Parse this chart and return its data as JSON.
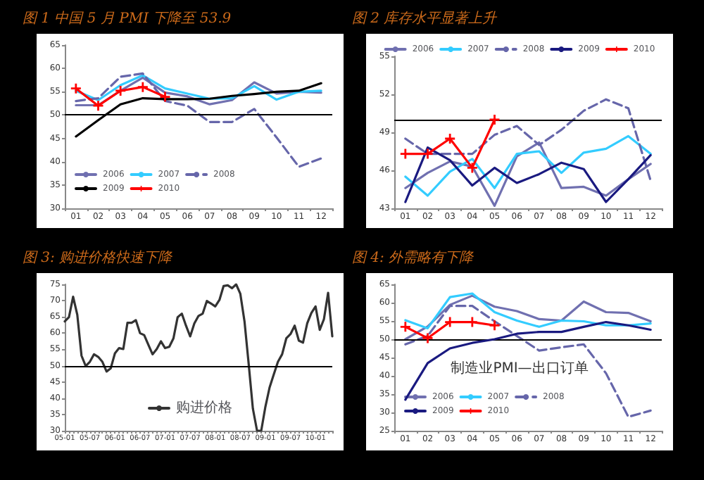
{
  "chart_data": [
    {
      "type": "line",
      "title": "图 1 中国 5 月 PMI 下降至 53.9",
      "categories": [
        "01",
        "02",
        "03",
        "04",
        "05",
        "06",
        "07",
        "08",
        "09",
        "10",
        "11",
        "12"
      ],
      "ylim": [
        30,
        65
      ],
      "yticks": [
        30,
        35,
        40,
        45,
        50,
        55,
        60,
        65
      ],
      "grid": false,
      "legend": "bottom",
      "ref_lines": [
        {
          "axis": "y",
          "value": 50,
          "color": "#000000"
        }
      ],
      "series": [
        {
          "name": "2006",
          "color": "#7070b0",
          "values": [
            52.1,
            52.1,
            55.2,
            58,
            54.8,
            54,
            52.3,
            53.2,
            57,
            54.6,
            55,
            54.8
          ]
        },
        {
          "name": "2007",
          "color": "#33ccff",
          "values": [
            55.2,
            53.2,
            56.4,
            58.5,
            55.7,
            54.6,
            53.5,
            53.6,
            56.2,
            53.3,
            55,
            55.2
          ]
        },
        {
          "name": "2008",
          "color": "#6666aa",
          "line_style": "dashed",
          "values": [
            53,
            53.6,
            58.2,
            58.9,
            53,
            52,
            48.5,
            48.5,
            51.3,
            45.2,
            38.9,
            40.7
          ]
        },
        {
          "name": "2009",
          "color": "#000000",
          "values": [
            45.4,
            48.9,
            52.3,
            53.6,
            53.4,
            53.4,
            53.5,
            54.1,
            54.5,
            55,
            55.2,
            56.8
          ]
        },
        {
          "name": "2010",
          "color": "#ff0000",
          "marker": "cross",
          "values": [
            55.7,
            52,
            55.2,
            56,
            53.9,
            null,
            null,
            null,
            null,
            null,
            null,
            null
          ]
        }
      ]
    },
    {
      "type": "line",
      "title": "图 2 库存水平显著上升",
      "categories": [
        "01",
        "02",
        "03",
        "04",
        "05",
        "06",
        "07",
        "08",
        "09",
        "10",
        "11",
        "12"
      ],
      "ylim": [
        43,
        55
      ],
      "yticks": [
        43,
        46,
        49,
        52,
        55
      ],
      "grid": false,
      "legend": "top",
      "ref_lines": [
        {
          "axis": "y",
          "value": 50,
          "color": "#000000"
        }
      ],
      "series": [
        {
          "name": "2006",
          "color": "#7070b0",
          "values": [
            44.6,
            45.8,
            46.7,
            46.3,
            43.2,
            47.1,
            48.2,
            44.6,
            44.7,
            44,
            45.3,
            46.5
          ]
        },
        {
          "name": "2007",
          "color": "#33ccff",
          "values": [
            45.5,
            44,
            45.9,
            46.9,
            44.6,
            47.3,
            47.5,
            45.8,
            47.4,
            47.7,
            48.7,
            47.3
          ]
        },
        {
          "name": "2008",
          "color": "#6666aa",
          "line_style": "dashed",
          "values": [
            48.5,
            47.3,
            47.3,
            47.3,
            48.8,
            49.5,
            48,
            49.2,
            50.7,
            51.6,
            50.9,
            45.2
          ]
        },
        {
          "name": "2009",
          "color": "#1a1a80",
          "values": [
            43.5,
            47.8,
            46.8,
            44.8,
            46.2,
            45,
            45.7,
            46.6,
            46.1,
            43.5,
            45.3,
            47.2
          ]
        },
        {
          "name": "2010",
          "color": "#ff0000",
          "marker": "cross",
          "values": [
            47.3,
            47.3,
            48.5,
            46.2,
            50,
            null,
            null,
            null,
            null,
            null,
            null,
            null
          ]
        }
      ]
    },
    {
      "type": "line",
      "title": "图 3: 购进价格快速下降",
      "categories": [
        "05-01",
        null,
        null,
        null,
        null,
        null,
        "05-07",
        null,
        null,
        null,
        null,
        null,
        "06-01",
        null,
        null,
        null,
        null,
        null,
        "06-07",
        null,
        null,
        null,
        null,
        null,
        "07-01",
        null,
        null,
        null,
        null,
        null,
        "07-07",
        null,
        null,
        null,
        null,
        null,
        "08-01",
        null,
        null,
        null,
        null,
        null,
        "08-07",
        null,
        null,
        null,
        null,
        null,
        "09-01",
        null,
        null,
        null,
        null,
        null,
        "09-07",
        null,
        null,
        null,
        null,
        null,
        "10-01",
        null,
        null,
        null,
        null
      ],
      "ylim": [
        30,
        75
      ],
      "yticks": [
        30,
        35,
        40,
        45,
        50,
        55,
        60,
        65,
        70,
        75
      ],
      "grid": false,
      "legend": "bottom",
      "ref_lines": [
        {
          "axis": "y",
          "value": 50,
          "color": "#000000"
        }
      ],
      "series": [
        {
          "name": "购进价格",
          "color": "#333333",
          "values": [
            63.6,
            64.9,
            71.2,
            65.6,
            53.1,
            49.9,
            51.2,
            53.5,
            52.7,
            51.2,
            48.2,
            49.2,
            53.8,
            55.4,
            55.1,
            63.2,
            63.2,
            64,
            60,
            59.4,
            56.4,
            53.5,
            55.1,
            57.5,
            55.4,
            55.8,
            58.4,
            64.9,
            66,
            62.3,
            59,
            63,
            65.3,
            66,
            69.9,
            69.1,
            68.2,
            70.2,
            74.5,
            74.7,
            73.8,
            75,
            72.1,
            63.6,
            50.5,
            36.8,
            30,
            30,
            37.4,
            43.3,
            47.3,
            51.2,
            53.5,
            58.4,
            59.7,
            62.3,
            57.7,
            57.1,
            63,
            66.2,
            68.2,
            61,
            64.3,
            72.4,
            59
          ]
        }
      ]
    },
    {
      "type": "line",
      "title": "图 4: 外需略有下降",
      "categories": [
        "01",
        "02",
        "03",
        "04",
        "05",
        "06",
        "07",
        "08",
        "09",
        "10",
        "11",
        "12"
      ],
      "ylim": [
        25,
        65
      ],
      "yticks": [
        25,
        30,
        35,
        40,
        45,
        50,
        55,
        60,
        65
      ],
      "grid": false,
      "legend": "bottom",
      "ref_lines": [
        {
          "axis": "y",
          "value": 50,
          "color": "#000000"
        }
      ],
      "annotations": [
        "制造业PMI—出口订单"
      ],
      "series": [
        {
          "name": "2006",
          "color": "#7070b0",
          "values": [
            50,
            53.5,
            59.4,
            61.9,
            58.9,
            57.7,
            55.5,
            55.1,
            60.3,
            57.4,
            57.2,
            54.9
          ]
        },
        {
          "name": "2007",
          "color": "#33ccff",
          "values": [
            55.2,
            53,
            61.5,
            62.5,
            57.4,
            55.1,
            53.4,
            55.1,
            54.9,
            53.8,
            53.8,
            54.3
          ]
        },
        {
          "name": "2008",
          "color": "#6666aa",
          "line_style": "dashed",
          "values": [
            48.6,
            50.9,
            59.1,
            59.1,
            54.9,
            50.9,
            46.9,
            47.8,
            48.6,
            40.7,
            28.8,
            30.5
          ]
        },
        {
          "name": "2009",
          "color": "#1a1a80",
          "values": [
            33.5,
            43.5,
            47.5,
            49,
            50,
            51.5,
            52,
            52,
            53.4,
            54.7,
            53.8,
            52.6
          ]
        },
        {
          "name": "2010",
          "color": "#ff0000",
          "marker": "cross",
          "values": [
            53.4,
            50.3,
            54.7,
            54.7,
            53.8,
            null,
            null,
            null,
            null,
            null,
            null,
            null
          ]
        }
      ]
    }
  ]
}
